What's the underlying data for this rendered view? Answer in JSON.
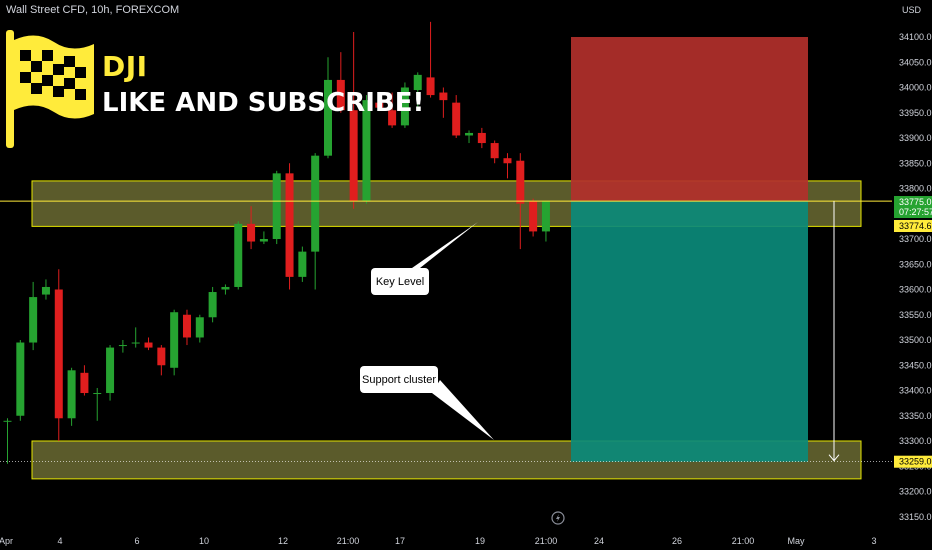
{
  "header": {
    "symbol_line": "Wall Street CFD, 10h, FOREXCOM"
  },
  "brand": {
    "ticker": "DJI",
    "slogan": "LIKE AND SUBSCRIBE!"
  },
  "colors": {
    "up": "#26a331",
    "down": "#e01e1e",
    "zone_fill": "#7a7a3a",
    "zone_border": "#e6e600",
    "stop_zone": "#b2302b",
    "target_zone": "#0b8a7a",
    "level_line": "#ffeb3b"
  },
  "icons": [
    "checkered-flag-icon",
    "lightning-icon"
  ],
  "chart_data": {
    "type": "candlestick",
    "currency": "USD",
    "y_axis": {
      "min": 33125,
      "max": 34125,
      "ticks": [
        34100,
        34050,
        34000,
        33950,
        33900,
        33850,
        33800,
        33750,
        33700,
        33650,
        33600,
        33550,
        33500,
        33450,
        33400,
        33350,
        33300,
        33250,
        33200,
        33150
      ],
      "tick_labels": [
        "34100.0",
        "34050.0",
        "34000.0",
        "33950.0",
        "33900.0",
        "33850.0",
        "33800.0",
        "33750.0",
        "33700.0",
        "33650.0",
        "33600.0",
        "33550.0",
        "33500.0",
        "33450.0",
        "33400.0",
        "33350.0",
        "33300.0",
        "33250.0",
        "33200.0",
        "33150.0"
      ]
    },
    "x_axis": {
      "labels": [
        "Apr",
        "4",
        "6",
        "10",
        "12",
        "21:00",
        "17",
        "19",
        "21:00",
        "24",
        "26",
        "21:00",
        "May",
        "3"
      ]
    },
    "candles": [
      {
        "o": 33340,
        "h": 33345,
        "l": 33255,
        "c": 33340
      },
      {
        "o": 33350,
        "h": 33500,
        "l": 33340,
        "c": 33495
      },
      {
        "o": 33495,
        "h": 33615,
        "l": 33480,
        "c": 33585
      },
      {
        "o": 33590,
        "h": 33620,
        "l": 33580,
        "c": 33605
      },
      {
        "o": 33600,
        "h": 33640,
        "l": 33300,
        "c": 33345
      },
      {
        "o": 33345,
        "h": 33445,
        "l": 33330,
        "c": 33440
      },
      {
        "o": 33435,
        "h": 33450,
        "l": 33390,
        "c": 33395
      },
      {
        "o": 33395,
        "h": 33405,
        "l": 33340,
        "c": 33395
      },
      {
        "o": 33395,
        "h": 33490,
        "l": 33380,
        "c": 33485
      },
      {
        "o": 33490,
        "h": 33500,
        "l": 33475,
        "c": 33490
      },
      {
        "o": 33495,
        "h": 33525,
        "l": 33485,
        "c": 33495
      },
      {
        "o": 33495,
        "h": 33505,
        "l": 33480,
        "c": 33485
      },
      {
        "o": 33485,
        "h": 33490,
        "l": 33430,
        "c": 33450
      },
      {
        "o": 33445,
        "h": 33560,
        "l": 33430,
        "c": 33555
      },
      {
        "o": 33550,
        "h": 33560,
        "l": 33490,
        "c": 33505
      },
      {
        "o": 33505,
        "h": 33550,
        "l": 33495,
        "c": 33545
      },
      {
        "o": 33545,
        "h": 33605,
        "l": 33535,
        "c": 33595
      },
      {
        "o": 33600,
        "h": 33610,
        "l": 33590,
        "c": 33605
      },
      {
        "o": 33605,
        "h": 33735,
        "l": 33600,
        "c": 33730
      },
      {
        "o": 33730,
        "h": 33765,
        "l": 33680,
        "c": 33695
      },
      {
        "o": 33695,
        "h": 33715,
        "l": 33690,
        "c": 33700
      },
      {
        "o": 33700,
        "h": 33835,
        "l": 33690,
        "c": 33830
      },
      {
        "o": 33830,
        "h": 33850,
        "l": 33600,
        "c": 33625
      },
      {
        "o": 33625,
        "h": 33685,
        "l": 33615,
        "c": 33675
      },
      {
        "o": 33675,
        "h": 33870,
        "l": 33600,
        "c": 33865
      },
      {
        "o": 33865,
        "h": 34060,
        "l": 33860,
        "c": 34015
      },
      {
        "o": 34015,
        "h": 34070,
        "l": 33950,
        "c": 33955
      },
      {
        "o": 33955,
        "h": 34110,
        "l": 33760,
        "c": 33775
      },
      {
        "o": 33775,
        "h": 33985,
        "l": 33770,
        "c": 33975
      },
      {
        "o": 33970,
        "h": 33985,
        "l": 33955,
        "c": 33960
      },
      {
        "o": 33955,
        "h": 33990,
        "l": 33920,
        "c": 33925
      },
      {
        "o": 33925,
        "h": 34010,
        "l": 33920,
        "c": 34000
      },
      {
        "o": 33995,
        "h": 34030,
        "l": 33960,
        "c": 34025
      },
      {
        "o": 34020,
        "h": 34130,
        "l": 33980,
        "c": 33985
      },
      {
        "o": 33990,
        "h": 34000,
        "l": 33940,
        "c": 33975
      },
      {
        "o": 33970,
        "h": 33985,
        "l": 33900,
        "c": 33905
      },
      {
        "o": 33905,
        "h": 33915,
        "l": 33890,
        "c": 33910
      },
      {
        "o": 33910,
        "h": 33920,
        "l": 33880,
        "c": 33890
      },
      {
        "o": 33890,
        "h": 33895,
        "l": 33850,
        "c": 33860
      },
      {
        "o": 33860,
        "h": 33870,
        "l": 33820,
        "c": 33850
      },
      {
        "o": 33855,
        "h": 33870,
        "l": 33680,
        "c": 33770
      },
      {
        "o": 33775,
        "h": 33780,
        "l": 33705,
        "c": 33715
      },
      {
        "o": 33715,
        "h": 33775,
        "l": 33695,
        "c": 33775
      }
    ],
    "zones": [
      {
        "name": "key-level-zone",
        "from": 33725,
        "to": 33815
      },
      {
        "name": "support-zone",
        "from": 33225,
        "to": 33300
      }
    ],
    "position": {
      "entry": 33775,
      "stop": 34100,
      "target": 33259
    },
    "level_line": 33775,
    "price_badges": {
      "current_price": "33775.0",
      "countdown": "07:27:57",
      "level": "33774.6",
      "target": "33259.0"
    },
    "annotations": [
      {
        "text": "Key Level"
      },
      {
        "text": "Support cluster"
      }
    ]
  }
}
